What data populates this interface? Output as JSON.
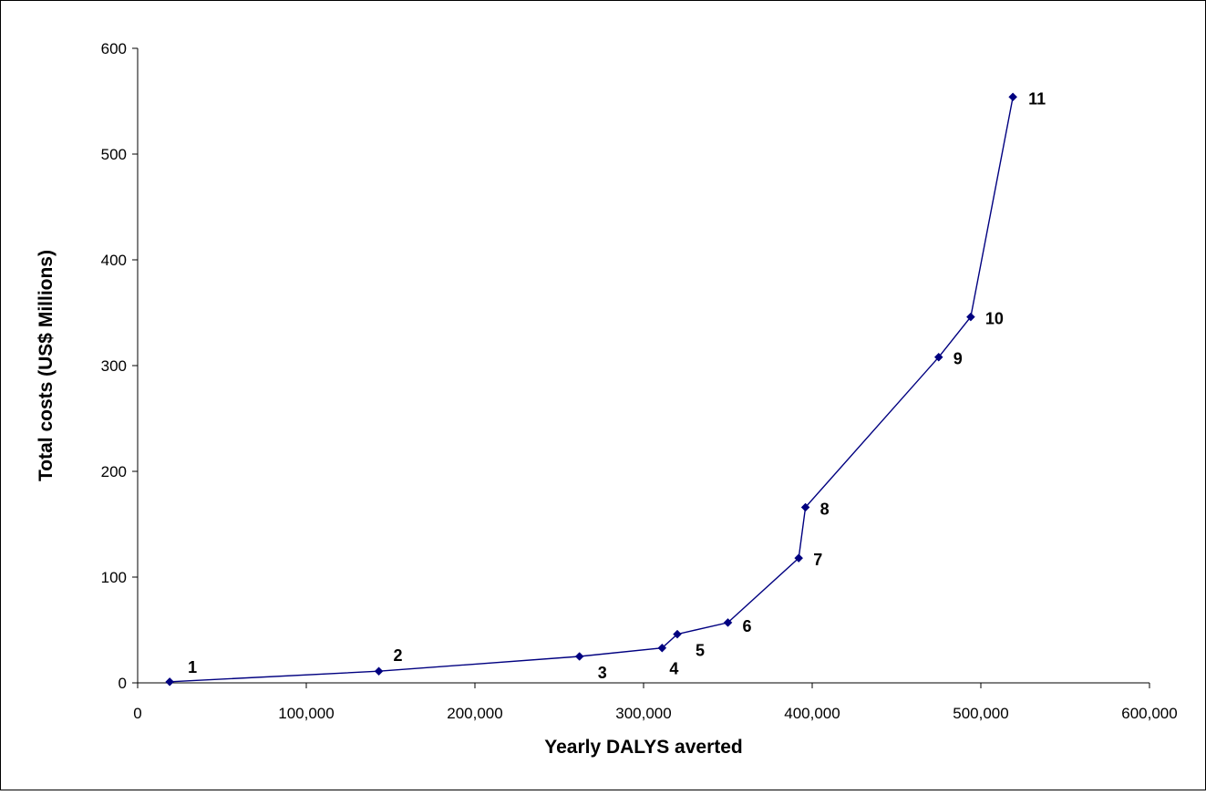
{
  "chart_data": {
    "type": "scatter",
    "title": "",
    "xlabel": "Yearly DALYS averted",
    "ylabel": "Total costs (US$ Millions)",
    "xlim": [
      0,
      600000
    ],
    "ylim": [
      0,
      600
    ],
    "x_ticks": [
      0,
      100000,
      200000,
      300000,
      400000,
      500000,
      600000
    ],
    "x_tick_labels": [
      "0",
      "100,000",
      "200,000",
      "300,000",
      "400,000",
      "500,000",
      "600,000"
    ],
    "y_ticks": [
      0,
      100,
      200,
      300,
      400,
      500,
      600
    ],
    "y_tick_labels": [
      "0",
      "100",
      "200",
      "300",
      "400",
      "500",
      "600"
    ],
    "grid": false,
    "legend": "none",
    "line_color": "#000080",
    "marker": "diamond",
    "points": [
      {
        "label": "1",
        "x": 19000,
        "y": 1
      },
      {
        "label": "2",
        "x": 143000,
        "y": 11
      },
      {
        "label": "3",
        "x": 262000,
        "y": 25
      },
      {
        "label": "4",
        "x": 311000,
        "y": 33
      },
      {
        "label": "5",
        "x": 320000,
        "y": 46
      },
      {
        "label": "6",
        "x": 350000,
        "y": 57
      },
      {
        "label": "7",
        "x": 392000,
        "y": 118
      },
      {
        "label": "8",
        "x": 396000,
        "y": 166
      },
      {
        "label": "9",
        "x": 475000,
        "y": 308
      },
      {
        "label": "10",
        "x": 494000,
        "y": 346
      },
      {
        "label": "11",
        "x": 519000,
        "y": 554
      }
    ]
  }
}
